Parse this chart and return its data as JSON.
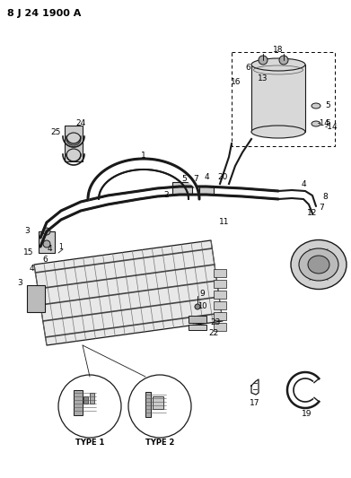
{
  "title": "8 J 24 1900 A",
  "bg_color": "#ffffff",
  "line_color": "#1a1a1a",
  "title_fontsize": 8,
  "label_fontsize": 6.5,
  "figsize": [
    3.91,
    5.33
  ],
  "dpi": 100
}
